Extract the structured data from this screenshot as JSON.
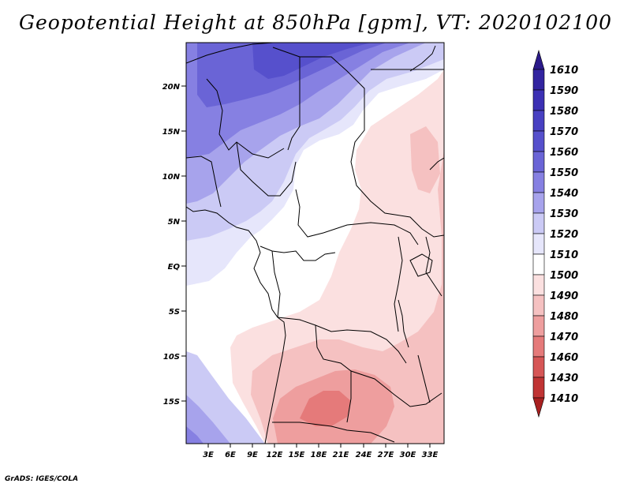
{
  "title": "Geopotential Height at 850hPa [gpm], VT: 2020102100",
  "credit": "GrADS: IGES/COLA",
  "map": {
    "lat_ticks": [
      "20N",
      "15N",
      "10N",
      "5N",
      "EQ",
      "5S",
      "10S",
      "15S"
    ],
    "lon_ticks": [
      "3E",
      "6E",
      "9E",
      "12E",
      "15E",
      "18E",
      "21E",
      "24E",
      "27E",
      "30E",
      "33E"
    ]
  },
  "colorbar": {
    "labels": [
      "1610",
      "1590",
      "1580",
      "1570",
      "1560",
      "1550",
      "1540",
      "1530",
      "1520",
      "1510",
      "1500",
      "1490",
      "1480",
      "1470",
      "1460",
      "1430",
      "1410"
    ],
    "colors": [
      "#2b1a8a",
      "#3224a0",
      "#3c30b4",
      "#4840c2",
      "#5650cc",
      "#6a64d6",
      "#8680e2",
      "#a7a3ec",
      "#cbcaf5",
      "#e6e6fb",
      "#ffffff",
      "#fbe0e0",
      "#f5c1c1",
      "#ee9e9e",
      "#e57a7a",
      "#d65656",
      "#c03434",
      "#a82020"
    ]
  }
}
